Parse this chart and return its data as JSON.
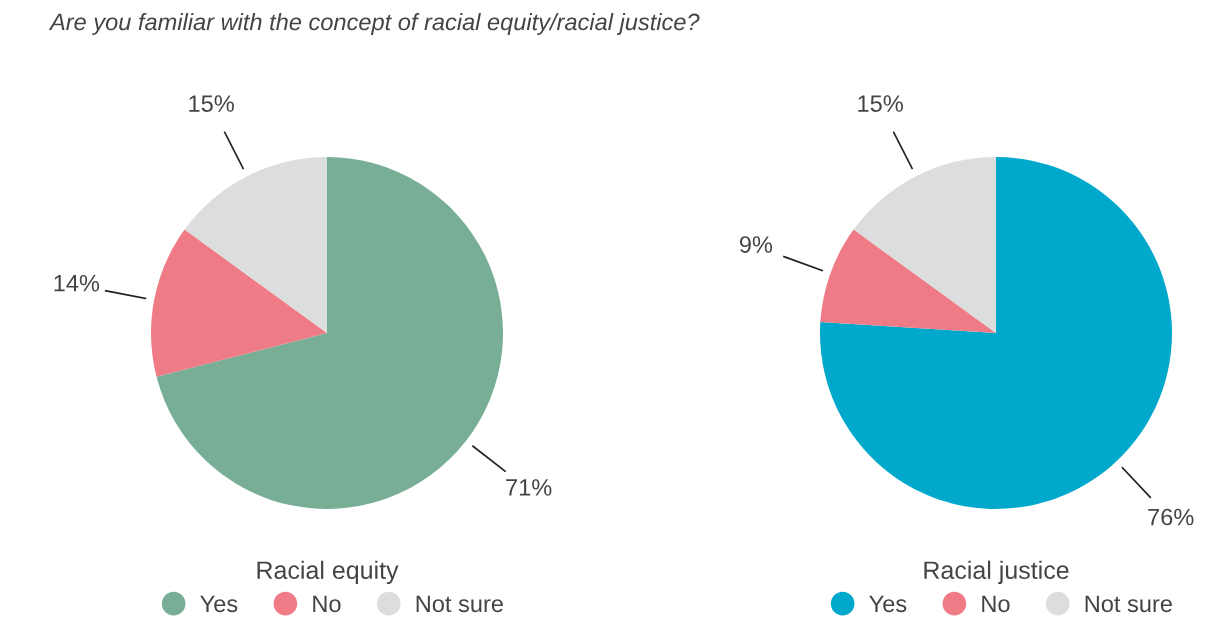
{
  "chart_data": [
    {
      "type": "pie",
      "title": "Are you familiar with the concept of racial equity/racial justice?",
      "xlabel": "Racial equity",
      "categories": [
        "Yes",
        "No",
        "Not sure"
      ],
      "values": [
        71,
        14,
        15
      ],
      "value_labels": [
        "71%",
        "14%",
        "15%"
      ],
      "colors": [
        "#78ae96",
        "#ef7b87",
        "#dcdddd"
      ],
      "legend": "bottom"
    },
    {
      "type": "pie",
      "xlabel": "Racial justice",
      "categories": [
        "Yes",
        "No",
        "Not sure"
      ],
      "values": [
        76,
        9,
        15
      ],
      "value_labels": [
        "76%",
        "9%",
        "15%"
      ],
      "colors": [
        "#00a8cc",
        "#ef7b87",
        "#dcdddd"
      ],
      "legend": "bottom"
    }
  ]
}
